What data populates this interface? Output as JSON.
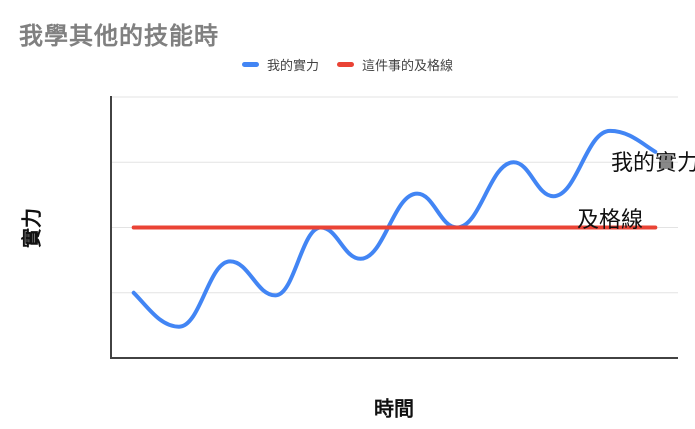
{
  "title": "我學其他的技能時",
  "legend": {
    "items": [
      {
        "label": "我的實力",
        "color": "#4285f4"
      },
      {
        "label": "這件事的及格線",
        "color": "#ea4335"
      }
    ]
  },
  "y_axis_label": "實力",
  "x_axis_label": "時間",
  "annotations": {
    "series_label": "我的實力",
    "threshold_label": "及格線"
  },
  "colors": {
    "series_line": "#4285f4",
    "threshold_line": "#ea4335",
    "gridline": "#e3e3e3",
    "axis": "#424242",
    "title_text": "#808080",
    "annotation_text": "#111111"
  },
  "chart_data": {
    "type": "line",
    "title": "我學其他的技能時",
    "xlabel": "時間",
    "ylabel": "實力",
    "xlim": [
      0,
      100
    ],
    "ylim": [
      0,
      100
    ],
    "grid": "horizontal",
    "gridline_values": [
      100,
      75,
      50,
      25
    ],
    "axis_tick_labels": "none",
    "legend_position": "top-center",
    "series": [
      {
        "name": "我的實力",
        "type": "line",
        "color": "#4285f4",
        "smooth": true,
        "points": [
          [
            4,
            25
          ],
          [
            12,
            12
          ],
          [
            21,
            37
          ],
          [
            29,
            24
          ],
          [
            37,
            50
          ],
          [
            44,
            38
          ],
          [
            54,
            63
          ],
          [
            61,
            50
          ],
          [
            71,
            75
          ],
          [
            78,
            62
          ],
          [
            88,
            87
          ],
          [
            96,
            79
          ]
        ]
      },
      {
        "name": "這件事的及格線",
        "type": "hline",
        "color": "#ea4335",
        "value": 50,
        "x_start": 4,
        "x_end": 96
      }
    ]
  }
}
